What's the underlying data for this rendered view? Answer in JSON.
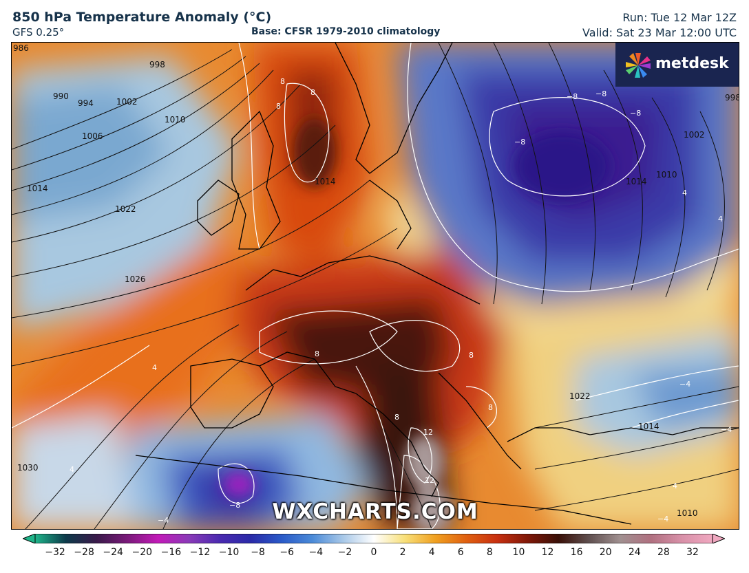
{
  "header": {
    "title": "850 hPa Temperature Anomaly (°C)",
    "model": "GFS 0.25°",
    "base": "Base: CFSR 1979-2010 climatology",
    "run": "Run: Tue 12 Mar 12Z",
    "valid": "Valid: Sat 23 Mar 12:00 UTC"
  },
  "logo": {
    "text": "metdesk",
    "icon": "pinwheel-logo-icon"
  },
  "watermark": "WXCHARTS.COM",
  "colorbar": {
    "ticks": [
      "−32",
      "−28",
      "−24",
      "−20",
      "−16",
      "−12",
      "−10",
      "−8",
      "−6",
      "−4",
      "−2",
      "0",
      "2",
      "4",
      "6",
      "8",
      "10",
      "12",
      "16",
      "20",
      "24",
      "28",
      "32"
    ],
    "colors": [
      "#1fb58a",
      "#0d3a4a",
      "#3a1a4a",
      "#7a1a7a",
      "#c21ab8",
      "#8a3ab8",
      "#4a2ab0",
      "#2a2aa8",
      "#2a5ac8",
      "#4a8ad8",
      "#a8c8e8",
      "#ffffff",
      "#f8e07a",
      "#f0a020",
      "#e06010",
      "#c83010",
      "#801808",
      "#3a1008",
      "#605050",
      "#a09090",
      "#b07080",
      "#d890a8",
      "#f0a8c0"
    ]
  },
  "isobars": [
    "986",
    "990",
    "994",
    "998",
    "1002",
    "1006",
    "1010",
    "1014",
    "1022",
    "1026",
    "1030",
    "1010",
    "1014",
    "1002",
    "998",
    "1022",
    "1014",
    "1010",
    "1014"
  ],
  "anomaly_labels": [
    "8",
    "8",
    "8",
    "−8",
    "−8",
    "−8",
    "−8",
    "4",
    "4",
    "−4",
    "−4",
    "4",
    "8",
    "8",
    "8",
    "12",
    "12",
    "−8",
    "−4",
    "−4",
    "4",
    "4",
    "8"
  ]
}
